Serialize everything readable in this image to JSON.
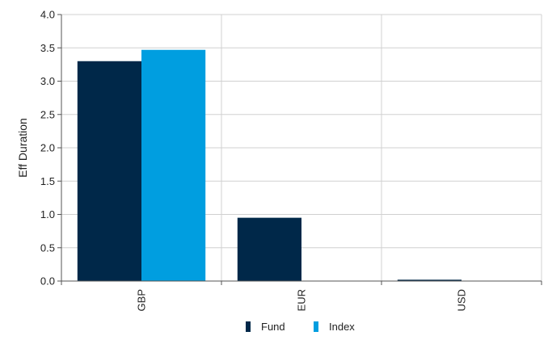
{
  "chart_data": {
    "type": "bar",
    "title": "",
    "xlabel": "",
    "ylabel": "Eff Duration",
    "categories": [
      "GBP",
      "EUR",
      "USD"
    ],
    "series": [
      {
        "name": "Fund",
        "color": "#002849",
        "values": [
          3.3,
          0.95,
          0.02
        ]
      },
      {
        "name": "Index",
        "color": "#009ee0",
        "values": [
          3.47,
          0,
          0
        ]
      }
    ],
    "ylim": [
      0,
      4.0
    ],
    "yticks": [
      "0.0",
      "0.5",
      "1.0",
      "1.5",
      "2.0",
      "2.5",
      "3.0",
      "3.5",
      "4.0"
    ],
    "grid": true,
    "legend": "bottom-center",
    "colors": {
      "grid": "#d0d0d0",
      "axis": "#555555"
    }
  }
}
